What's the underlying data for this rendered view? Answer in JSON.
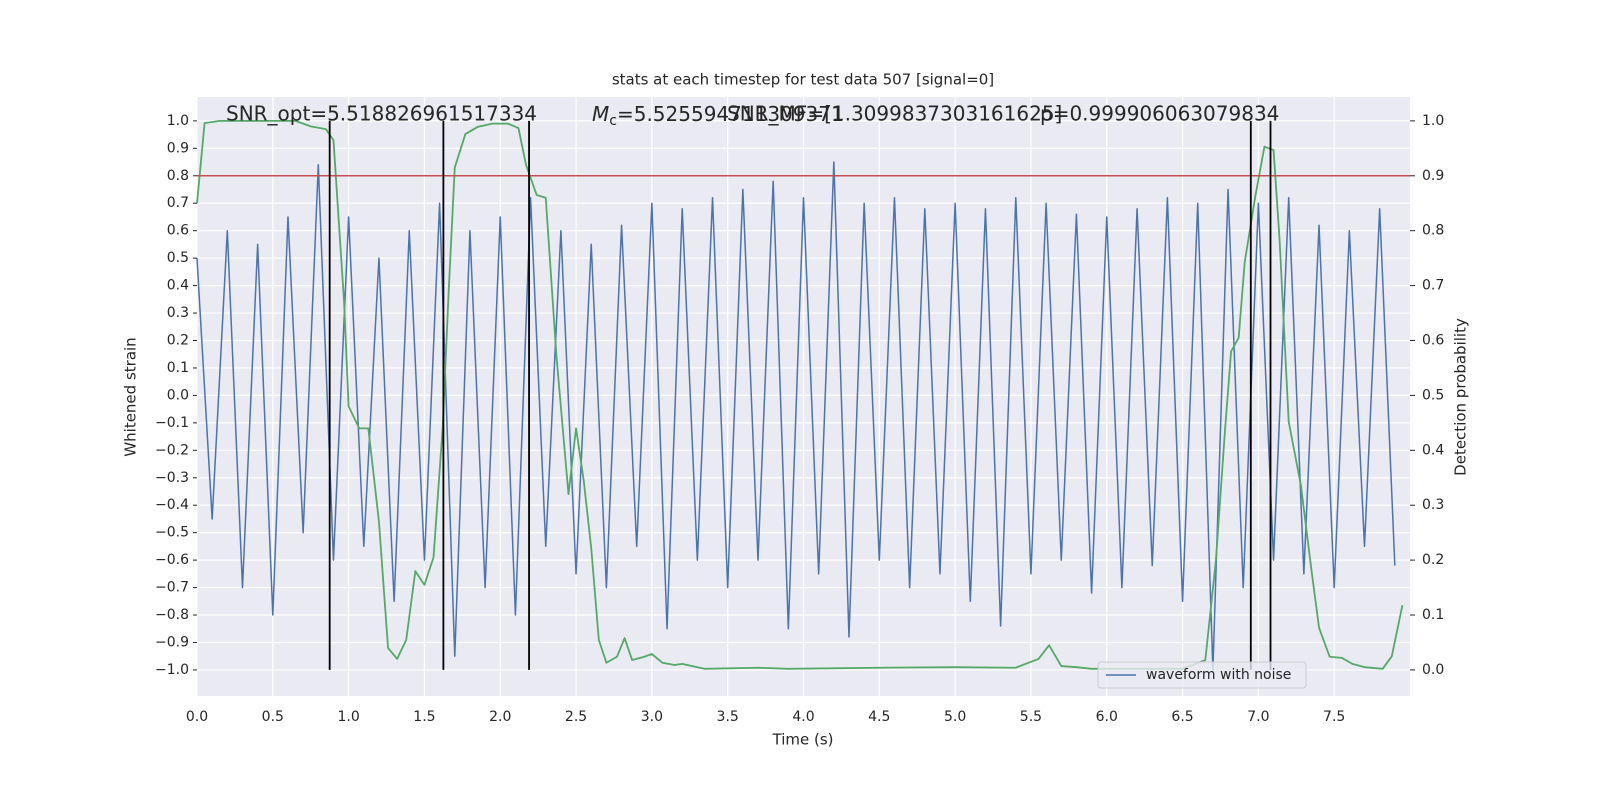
{
  "chart_data": {
    "type": "line",
    "title": "stats at each timestep for test data 507 [signal=0]",
    "xlabel": "Time (s)",
    "ylabel": "Whitened strain",
    "y2label": "Detection probability",
    "annotations": {
      "snr_opt": "SNR_opt=5.518826961517334",
      "mc": {
        "symbol": "M",
        "subscript": "c",
        "text": "=5.525594711309371"
      },
      "snr_mf": "SNR_MF=[1.3099837303161625]",
      "p": "p=0.999906063079834"
    },
    "xlim": [
      0,
      8.0
    ],
    "ylim": [
      -1.095,
      1.087
    ],
    "y2lim": [
      -0.0475,
      1.0435
    ],
    "xticks": [
      {
        "value": 0,
        "label": "0.0"
      },
      0.5,
      {
        "value": 1,
        "label": "1.0"
      },
      1.5,
      {
        "value": 2,
        "label": "2.0"
      },
      2.5,
      {
        "value": 3,
        "label": "3.0"
      },
      3.5,
      {
        "value": 4,
        "label": "4.0"
      },
      4.5,
      {
        "value": 5,
        "label": "5.0"
      },
      5.5,
      {
        "value": 6,
        "label": "6.0"
      },
      6.5,
      {
        "value": 7,
        "label": "7.0"
      },
      7.5
    ],
    "yticks": [
      {
        "value": -1,
        "label": "−1.0"
      },
      {
        "value": -0.9,
        "label": "−0.9"
      },
      {
        "value": -0.8,
        "label": "−0.8"
      },
      {
        "value": -0.7,
        "label": "−0.7"
      },
      {
        "value": -0.6,
        "label": "−0.6"
      },
      {
        "value": -0.5,
        "label": "−0.5"
      },
      {
        "value": -0.4,
        "label": "−0.4"
      },
      {
        "value": -0.3,
        "label": "−0.3"
      },
      {
        "value": -0.2,
        "label": "−0.2"
      },
      {
        "value": -0.1,
        "label": "−0.1"
      },
      {
        "value": 0,
        "label": "0.0"
      },
      0.1,
      0.2,
      0.3,
      0.4,
      0.5,
      0.6,
      0.7,
      0.8,
      0.9,
      {
        "value": 1,
        "label": "1.0"
      }
    ],
    "y2ticks": [
      {
        "value": 0,
        "label": "0.0"
      },
      0.1,
      0.2,
      0.3,
      0.4,
      0.5,
      0.6,
      0.7,
      0.8,
      0.9,
      {
        "value": 1,
        "label": "1.0"
      }
    ],
    "grid": true,
    "legend": "lower right",
    "series": [
      {
        "name": "waveform with noise",
        "color": "#4c72b0",
        "x": [
          0.0,
          0.1,
          0.2,
          0.3,
          0.4,
          0.5,
          0.6,
          0.7,
          0.8,
          0.9,
          1.0,
          1.1,
          1.2,
          1.3,
          1.4,
          1.5,
          1.6,
          1.7,
          1.8,
          1.9,
          2.0,
          2.1,
          2.2,
          2.3,
          2.4,
          2.5,
          2.6,
          2.7,
          2.8,
          2.9,
          3.0,
          3.1,
          3.2,
          3.3,
          3.4,
          3.5,
          3.6,
          3.7,
          3.8,
          3.9,
          4.0,
          4.1,
          4.2,
          4.3,
          4.4,
          4.5,
          4.6,
          4.7,
          4.8,
          4.9,
          5.0,
          5.1,
          5.2,
          5.3,
          5.4,
          5.5,
          5.6,
          5.7,
          5.8,
          5.9,
          6.0,
          6.1,
          6.2,
          6.3,
          6.4,
          6.5,
          6.6,
          6.7,
          6.8,
          6.9,
          7.0,
          7.1,
          7.2,
          7.3,
          7.4,
          7.5,
          7.6,
          7.7,
          7.8,
          7.9
        ],
        "values": [
          0.5,
          -0.45,
          0.6,
          -0.7,
          0.55,
          -0.8,
          0.65,
          -0.5,
          0.84,
          -0.6,
          0.65,
          -0.55,
          0.5,
          -0.75,
          0.6,
          -0.6,
          0.7,
          -0.95,
          0.6,
          -0.7,
          0.65,
          -0.8,
          0.72,
          -0.55,
          0.6,
          -0.65,
          0.55,
          -0.7,
          0.62,
          -0.55,
          0.7,
          -0.85,
          0.68,
          -0.6,
          0.72,
          -0.7,
          0.75,
          -0.6,
          0.78,
          -0.85,
          0.72,
          -0.65,
          0.85,
          -0.88,
          0.7,
          -0.6,
          0.72,
          -0.7,
          0.68,
          -0.65,
          0.7,
          -0.75,
          0.68,
          -0.84,
          0.72,
          -0.65,
          0.7,
          -0.6,
          0.66,
          -0.72,
          0.65,
          -0.7,
          0.68,
          -0.62,
          0.72,
          -0.75,
          0.7,
          -1.0,
          0.75,
          -0.7,
          0.7,
          -0.6,
          0.72,
          -0.65,
          0.62,
          -0.7,
          0.6,
          -0.55,
          0.68,
          -0.62
        ]
      },
      {
        "color": "#55a868",
        "axis": "y2",
        "x": [
          0.0,
          0.05,
          0.15,
          0.65,
          0.75,
          0.85,
          0.9,
          0.97,
          1.0,
          1.07,
          1.13,
          1.2,
          1.26,
          1.32,
          1.38,
          1.44,
          1.5,
          1.56,
          1.62,
          1.66,
          1.7,
          1.77,
          1.85,
          1.95,
          2.05,
          2.12,
          2.17,
          2.24,
          2.3,
          2.37,
          2.45,
          2.5,
          2.55,
          2.6,
          2.65,
          2.7,
          2.77,
          2.82,
          2.87,
          2.95,
          3.0,
          3.07,
          3.15,
          3.2,
          3.35,
          3.7,
          3.9,
          4.5,
          5.0,
          5.4,
          5.55,
          5.62,
          5.7,
          5.8,
          5.9,
          6.5,
          6.65,
          6.72,
          6.78,
          6.82,
          6.87,
          6.91,
          6.98,
          7.04,
          7.1,
          7.14,
          7.2,
          7.28,
          7.35,
          7.4,
          7.47,
          7.55,
          7.62,
          7.7,
          7.82,
          7.88,
          7.95
        ],
        "values": [
          0.85,
          0.996,
          1.0,
          1.0,
          0.99,
          0.985,
          0.965,
          0.67,
          0.48,
          0.44,
          0.44,
          0.27,
          0.04,
          0.02,
          0.055,
          0.18,
          0.155,
          0.205,
          0.44,
          0.69,
          0.915,
          0.976,
          0.989,
          0.995,
          0.995,
          0.987,
          0.92,
          0.865,
          0.86,
          0.574,
          0.32,
          0.44,
          0.346,
          0.222,
          0.055,
          0.013,
          0.024,
          0.058,
          0.018,
          0.024,
          0.029,
          0.013,
          0.009,
          0.011,
          0.002,
          0.004,
          0.002,
          0.004,
          0.005,
          0.004,
          0.02,
          0.045,
          0.007,
          0.005,
          0.002,
          0.002,
          0.018,
          0.2,
          0.437,
          0.58,
          0.605,
          0.743,
          0.863,
          0.953,
          0.947,
          0.783,
          0.452,
          0.337,
          0.182,
          0.077,
          0.024,
          0.022,
          0.011,
          0.005,
          0.002,
          0.025,
          0.118
        ]
      }
    ],
    "hlines": [
      {
        "y": 0.8,
        "color": "#c44e52"
      }
    ],
    "vlines": {
      "x": [
        0.875,
        1.625,
        2.19,
        6.95,
        7.08
      ],
      "ymin": -1,
      "ymax": 1,
      "color": "#000000"
    }
  }
}
